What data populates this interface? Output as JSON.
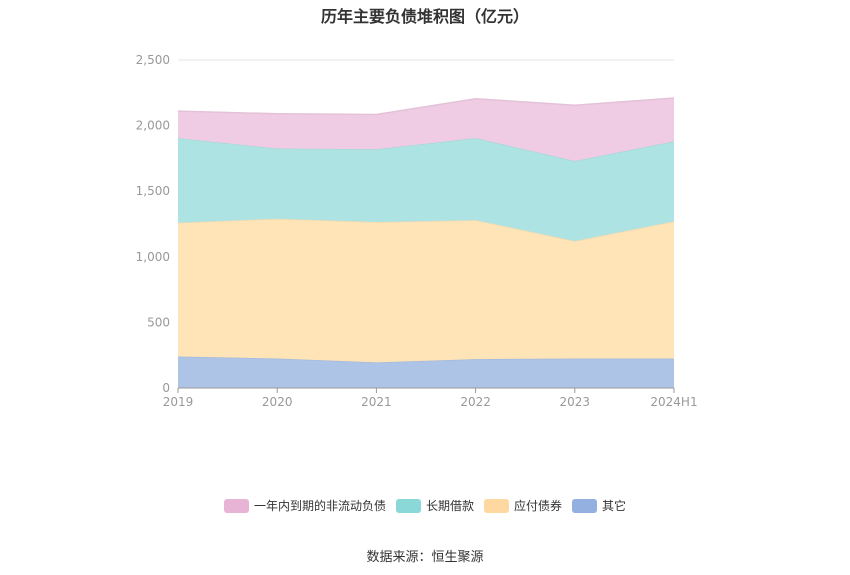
{
  "chart_data": {
    "type": "area",
    "stacked": true,
    "title": "历年主要负债堆积图（亿元）",
    "xlabel": "",
    "ylabel": "",
    "categories": [
      "2019",
      "2020",
      "2021",
      "2022",
      "2023",
      "2024H1"
    ],
    "ylim": [
      0,
      2500
    ],
    "yticks": [
      0,
      500,
      1000,
      1500,
      2000,
      2500
    ],
    "ytick_labels": [
      "0",
      "500",
      "1,000",
      "1,500",
      "2,000",
      "2,500"
    ],
    "grid": true,
    "legend_position": "bottom",
    "series": [
      {
        "name": "其它",
        "color": "#aec4e6",
        "legend_color": "#93b0e0",
        "values": [
          240,
          225,
          195,
          220,
          225,
          225
        ]
      },
      {
        "name": "应付债券",
        "color": "#ffe4b8",
        "legend_color": "#ffd7a0",
        "values": [
          1020,
          1065,
          1070,
          1060,
          895,
          1045
        ]
      },
      {
        "name": "长期借款",
        "color": "#aee3e4",
        "legend_color": "#8ad8d8",
        "values": [
          645,
          535,
          555,
          625,
          610,
          610
        ]
      },
      {
        "name": "一年内到期的非流动负债",
        "color": "#efcce3",
        "legend_color": "#e8b4d6",
        "values": [
          205,
          265,
          265,
          300,
          425,
          330
        ]
      }
    ],
    "legend_order": [
      "一年内到期的非流动负债",
      "长期借款",
      "应付债券",
      "其它"
    ]
  },
  "source_text": "数据来源：恒生聚源"
}
